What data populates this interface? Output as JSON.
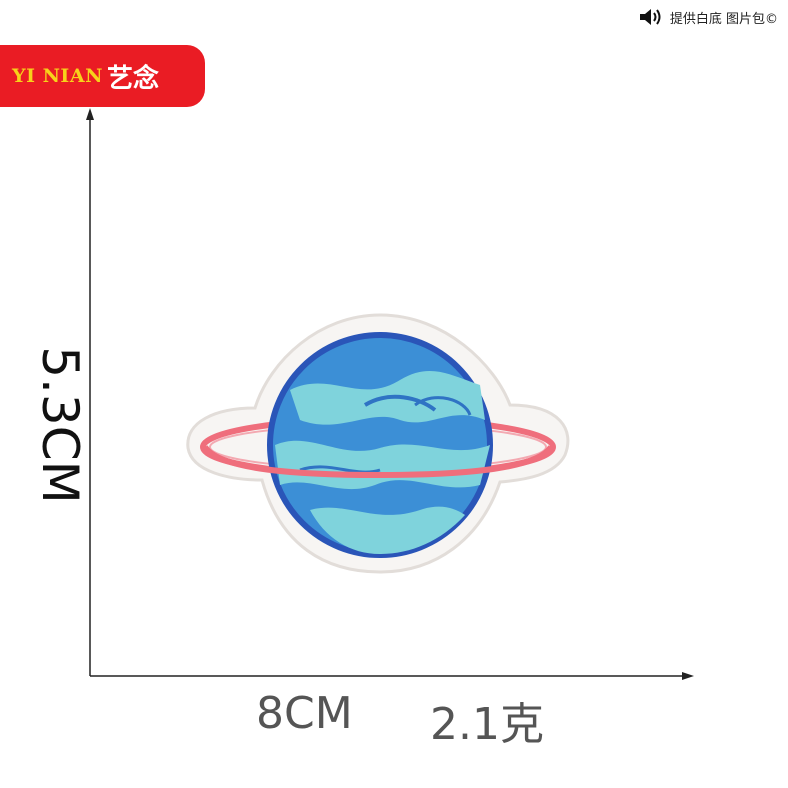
{
  "brand": {
    "latin": "YI NIAN",
    "cjk": "艺念"
  },
  "topbar": {
    "speaker_icon": "speaker-icon",
    "text": "提供白底 图片包©"
  },
  "dimensions": {
    "height_label": "5.3CM",
    "width_label": "8CM",
    "weight_label": "2.1克"
  },
  "colors": {
    "brand_red": "#ea1c24",
    "brand_yellow": "#f7d21a",
    "planet_blue": "#3c8fd6",
    "planet_teal": "#7fd3dc",
    "ring_pink": "#ef6e7c",
    "outline_navy": "#2a55b8"
  }
}
